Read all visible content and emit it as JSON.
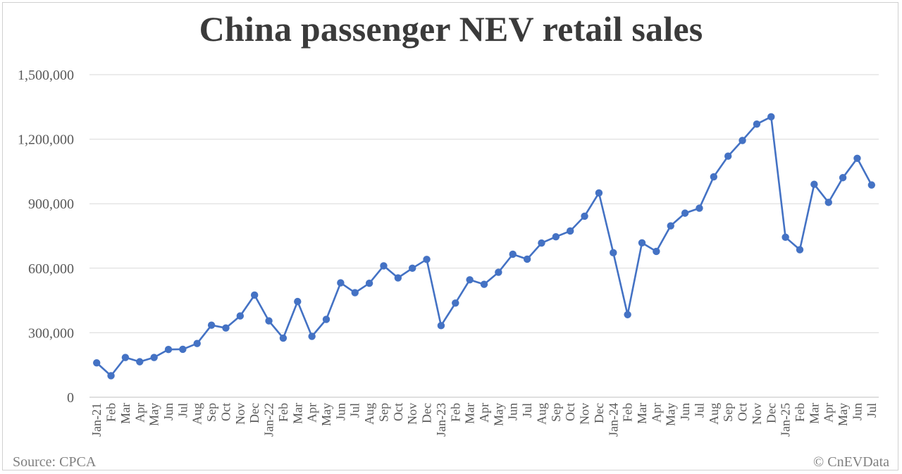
{
  "chart_data": {
    "type": "line",
    "title": "China passenger NEV retail sales",
    "xlabel": "",
    "ylabel": "",
    "ylim": [
      0,
      1500000
    ],
    "yticks": [
      "0",
      "300,000",
      "600,000",
      "900,000",
      "1,200,000",
      "1,500,000"
    ],
    "grid": true,
    "legend": "none",
    "color": "#4472C4",
    "categories": [
      "Jan-21",
      "Feb",
      "Mar",
      "Apr",
      "May",
      "Jun",
      "Jul",
      "Aug",
      "Sep",
      "Oct",
      "Nov",
      "Dec",
      "Jan-22",
      "Feb",
      "Mar",
      "Apr",
      "May",
      "Jun",
      "Jul",
      "Aug",
      "Sep",
      "Oct",
      "Nov",
      "Dec",
      "Jan-23",
      "Feb",
      "Mar",
      "Apr",
      "May",
      "Jun",
      "Jul",
      "Aug",
      "Sep",
      "Oct",
      "Nov",
      "Dec",
      "Jan-24",
      "Feb",
      "Mar",
      "Apr",
      "May",
      "Jun",
      "Jul",
      "Aug",
      "Sep",
      "Oct",
      "Nov",
      "Dec",
      "Jan-25",
      "Feb",
      "Mar",
      "Apr",
      "May",
      "Jun",
      "Jul"
    ],
    "series": [
      {
        "name": "",
        "values": [
          160000,
          100000,
          185000,
          165000,
          185000,
          222000,
          223000,
          250000,
          335000,
          322000,
          378000,
          475000,
          355000,
          275000,
          445000,
          283000,
          362000,
          532000,
          486000,
          530000,
          611000,
          555000,
          600000,
          641000,
          333000,
          438000,
          546000,
          525000,
          581000,
          665000,
          642000,
          717000,
          746000,
          773000,
          842000,
          950000,
          672000,
          384000,
          718000,
          678000,
          797000,
          856000,
          879000,
          1025000,
          1121000,
          1194000,
          1270000,
          1304000,
          744000,
          686000,
          990000,
          906000,
          1021000,
          1111000,
          987000
        ]
      }
    ]
  },
  "footer": {
    "source": "Source: CPCA",
    "copyright": "© CnEVData"
  }
}
